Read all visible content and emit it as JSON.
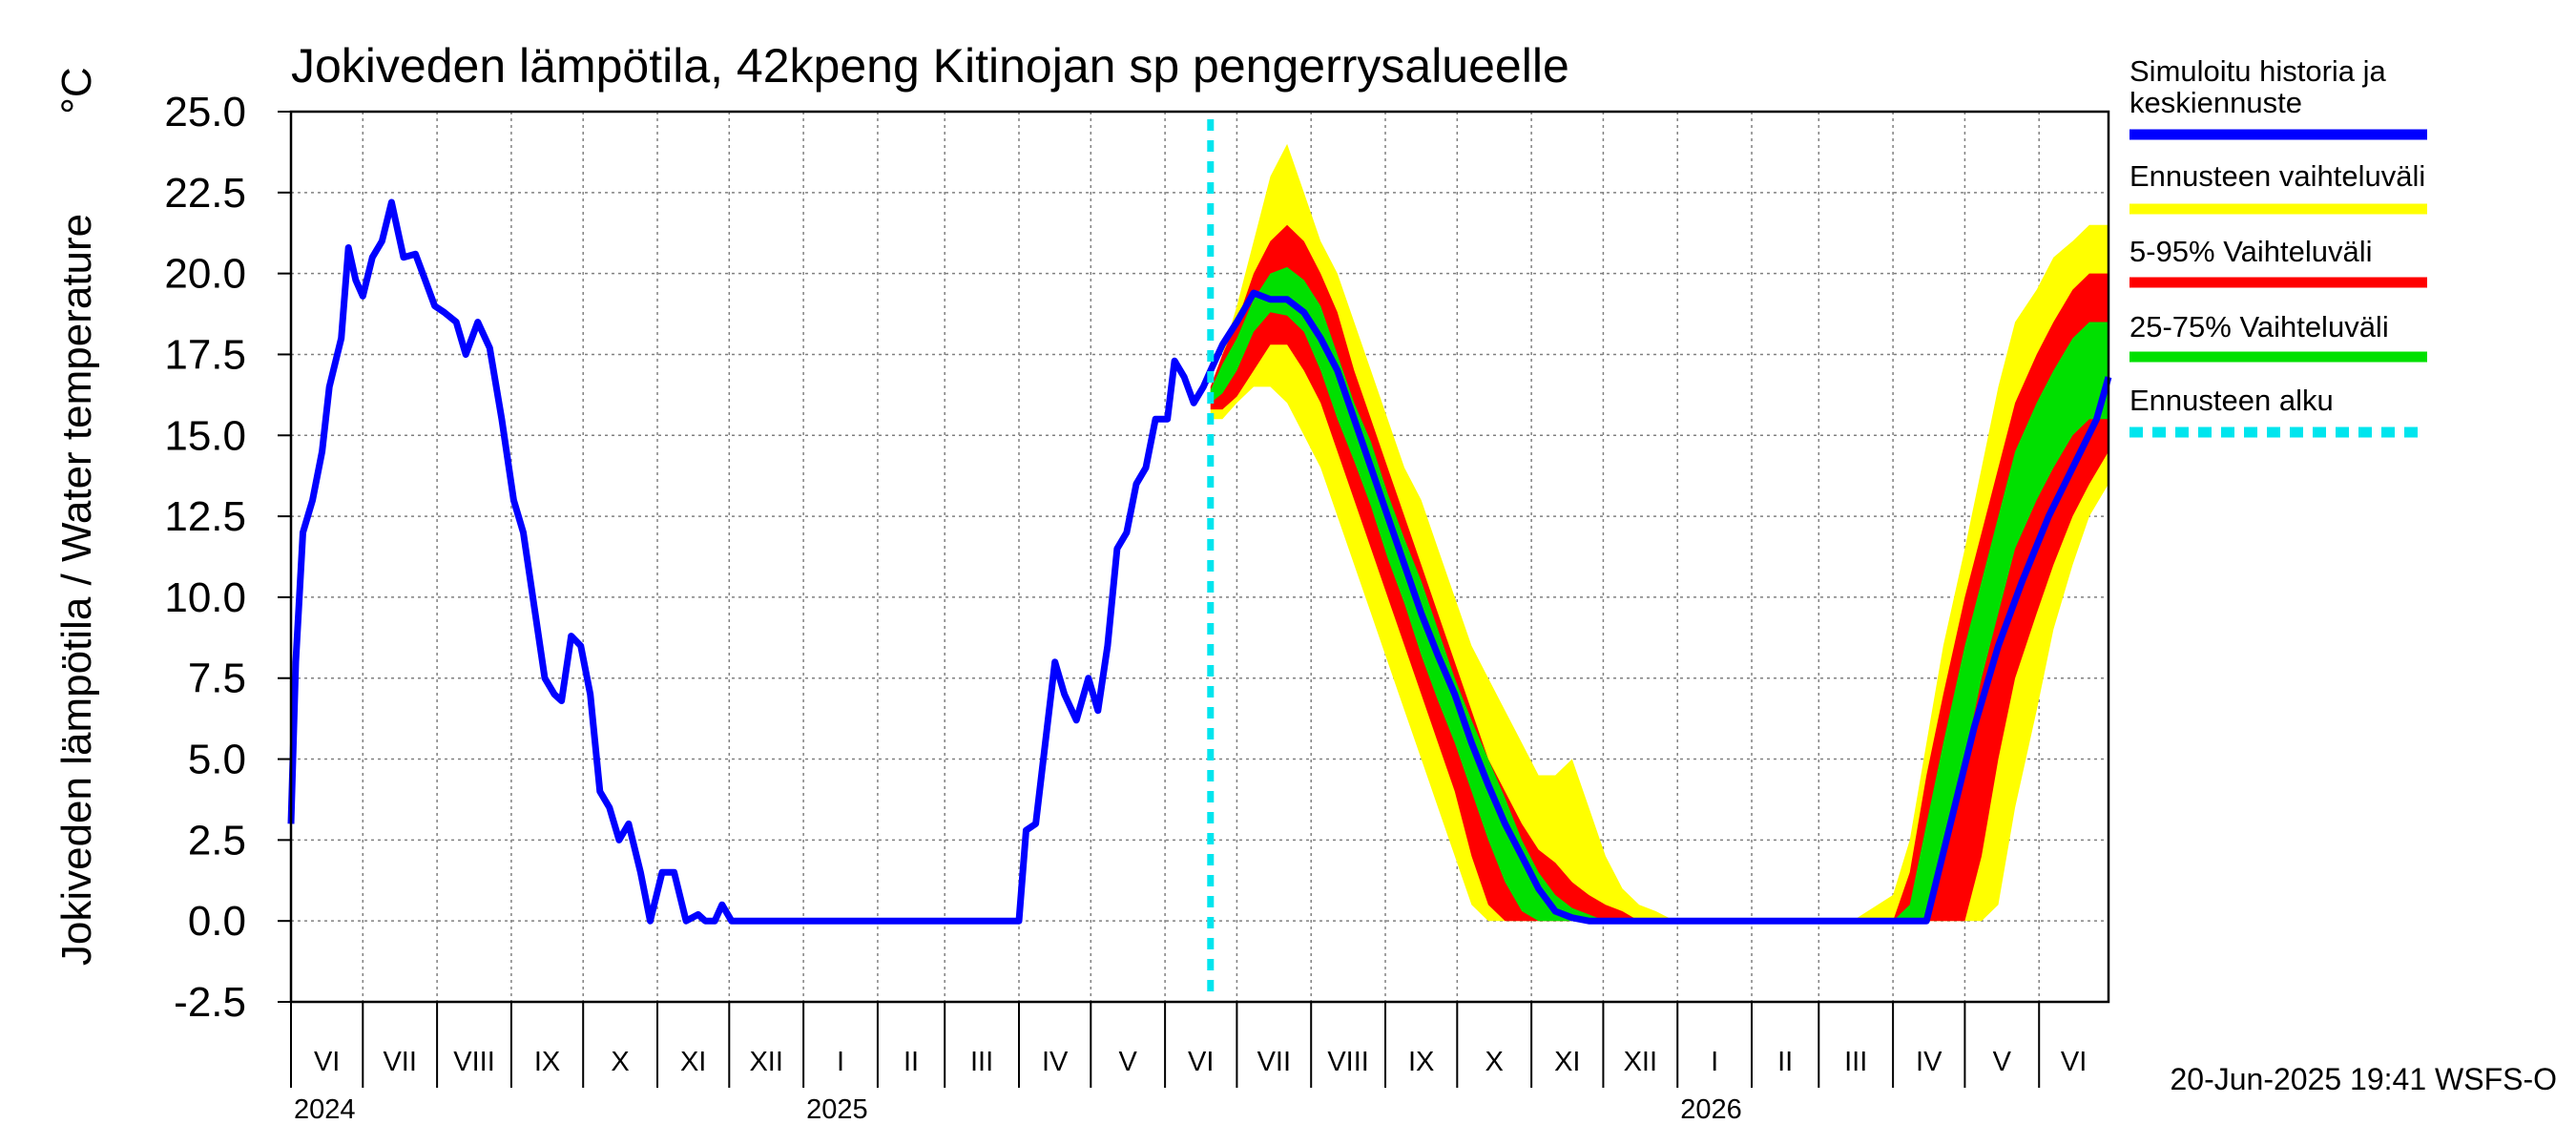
{
  "chart_data": {
    "type": "area",
    "title": "Jokiveden lämpötila, 42kpeng Kitinojan sp pengerrysalueelle",
    "ylabel": "Jokiveden lämpötila / Water temperature",
    "yunit": "°C",
    "ylim": [
      -2.5,
      25.0
    ],
    "yticks": [
      "25.0",
      "22.5",
      "20.0",
      "17.5",
      "15.0",
      "12.5",
      "10.0",
      "7.5",
      "5.0",
      "2.5",
      "0.0",
      "-2.5"
    ],
    "xlim": [
      "2024-06-01",
      "2026-06-30"
    ],
    "months": [
      {
        "label": "VI",
        "start": "2024-06-01"
      },
      {
        "label": "VII",
        "start": "2024-07-01"
      },
      {
        "label": "VIII",
        "start": "2024-08-01"
      },
      {
        "label": "IX",
        "start": "2024-09-01"
      },
      {
        "label": "X",
        "start": "2024-10-01"
      },
      {
        "label": "XI",
        "start": "2024-11-01"
      },
      {
        "label": "XII",
        "start": "2024-12-01"
      },
      {
        "label": "I",
        "start": "2025-01-01"
      },
      {
        "label": "II",
        "start": "2025-02-01"
      },
      {
        "label": "III",
        "start": "2025-03-01"
      },
      {
        "label": "IV",
        "start": "2025-04-01"
      },
      {
        "label": "V",
        "start": "2025-05-01"
      },
      {
        "label": "VI",
        "start": "2025-06-01"
      },
      {
        "label": "VII",
        "start": "2025-07-01"
      },
      {
        "label": "VIII",
        "start": "2025-08-01"
      },
      {
        "label": "IX",
        "start": "2025-09-01"
      },
      {
        "label": "X",
        "start": "2025-10-01"
      },
      {
        "label": "XI",
        "start": "2025-11-01"
      },
      {
        "label": "XII",
        "start": "2025-12-01"
      },
      {
        "label": "I",
        "start": "2026-01-01"
      },
      {
        "label": "II",
        "start": "2026-02-01"
      },
      {
        "label": "III",
        "start": "2026-03-01"
      },
      {
        "label": "IV",
        "start": "2026-04-01"
      },
      {
        "label": "V",
        "start": "2026-05-01"
      },
      {
        "label": "VI",
        "start": "2026-06-01"
      }
    ],
    "years": [
      {
        "label": "2024",
        "date": "2024-06-01"
      },
      {
        "label": "2025",
        "date": "2025-01-01"
      },
      {
        "label": "2026",
        "date": "2026-01-01"
      }
    ],
    "forecast_start": "2025-06-20",
    "grid": true,
    "legend_position": "right",
    "colors": {
      "history": "#0000ff",
      "range_full": "#ffff00",
      "range_5_95": "#ff0000",
      "range_25_75": "#00e000",
      "forecast_start": "#00e5ee"
    },
    "series": [
      {
        "name": "Simuloitu historia ja keskiennuste",
        "x": [
          "2024-06-01",
          "2024-06-03",
          "2024-06-06",
          "2024-06-10",
          "2024-06-14",
          "2024-06-17",
          "2024-06-22",
          "2024-06-25",
          "2024-06-28",
          "2024-07-01",
          "2024-07-05",
          "2024-07-09",
          "2024-07-13",
          "2024-07-18",
          "2024-07-23",
          "2024-07-27",
          "2024-07-31",
          "2024-08-04",
          "2024-08-09",
          "2024-08-13",
          "2024-08-18",
          "2024-08-23",
          "2024-08-28",
          "2024-09-02",
          "2024-09-06",
          "2024-09-11",
          "2024-09-15",
          "2024-09-19",
          "2024-09-22",
          "2024-09-26",
          "2024-09-30",
          "2024-10-04",
          "2024-10-08",
          "2024-10-12",
          "2024-10-16",
          "2024-10-20",
          "2024-10-25",
          "2024-10-29",
          "2024-11-03",
          "2024-11-08",
          "2024-11-13",
          "2024-11-18",
          "2024-11-21",
          "2024-11-25",
          "2024-11-28",
          "2024-12-02",
          "2024-12-06",
          "2024-12-10",
          "2024-12-15",
          "2024-12-19",
          "2024-12-25",
          "2025-01-01",
          "2025-02-01",
          "2025-03-01",
          "2025-04-01",
          "2025-04-04",
          "2025-04-08",
          "2025-04-12",
          "2025-04-16",
          "2025-04-20",
          "2025-04-25",
          "2025-04-30",
          "2025-05-04",
          "2025-05-08",
          "2025-05-12",
          "2025-05-16",
          "2025-05-20",
          "2025-05-24",
          "2025-05-28",
          "2025-06-02",
          "2025-06-05",
          "2025-06-09",
          "2025-06-13",
          "2025-06-17",
          "2025-06-20",
          "2025-06-25",
          "2025-07-01",
          "2025-07-08",
          "2025-07-15",
          "2025-07-22",
          "2025-07-29",
          "2025-08-05",
          "2025-08-12",
          "2025-08-19",
          "2025-08-26",
          "2025-09-02",
          "2025-09-09",
          "2025-09-16",
          "2025-09-23",
          "2025-09-30",
          "2025-10-07",
          "2025-10-14",
          "2025-10-21",
          "2025-10-28",
          "2025-11-04",
          "2025-11-11",
          "2025-11-18",
          "2025-11-25",
          "2025-12-02",
          "2025-12-15",
          "2026-01-01",
          "2026-02-01",
          "2026-03-01",
          "2026-04-01",
          "2026-04-15",
          "2026-04-25",
          "2026-05-05",
          "2026-05-15",
          "2026-05-25",
          "2026-06-05",
          "2026-06-15",
          "2026-06-25",
          "2026-06-30"
        ],
        "y": [
          3.0,
          8.0,
          12.0,
          13.0,
          14.5,
          16.5,
          18.0,
          20.8,
          19.8,
          19.3,
          20.5,
          21.0,
          22.2,
          20.5,
          20.6,
          19.8,
          19.0,
          18.8,
          18.5,
          17.5,
          18.5,
          17.7,
          15.5,
          13.0,
          12.0,
          9.5,
          7.5,
          7.0,
          6.8,
          8.8,
          8.5,
          7.0,
          4.0,
          3.5,
          2.5,
          3.0,
          1.5,
          0.0,
          1.5,
          1.5,
          0.0,
          0.2,
          0.0,
          0.0,
          0.5,
          0.0,
          0.0,
          0.0,
          0.0,
          0.0,
          0.0,
          0.0,
          0.0,
          0.0,
          0.0,
          2.8,
          3.0,
          5.5,
          8.0,
          7.0,
          6.2,
          7.5,
          6.5,
          8.5,
          11.5,
          12.0,
          13.5,
          14.0,
          15.5,
          15.5,
          17.3,
          16.8,
          16.0,
          16.5,
          17.0,
          17.8,
          18.5,
          19.4,
          19.2,
          19.2,
          18.8,
          18.0,
          17.0,
          15.5,
          14.0,
          12.5,
          11.0,
          9.5,
          8.2,
          7.0,
          5.5,
          4.2,
          3.0,
          2.0,
          1.0,
          0.3,
          0.1,
          0.0,
          0.0,
          0.0,
          0.0,
          0.0,
          0.0,
          0.0,
          0.0,
          3.0,
          6.0,
          8.5,
          10.5,
          12.5,
          14.0,
          15.5,
          16.8
        ]
      },
      {
        "name": "Ennusteen vaihteluväli",
        "x": [
          "2025-06-20",
          "2025-06-25",
          "2025-07-01",
          "2025-07-08",
          "2025-07-15",
          "2025-07-22",
          "2025-07-29",
          "2025-08-05",
          "2025-08-12",
          "2025-08-19",
          "2025-08-26",
          "2025-09-02",
          "2025-09-09",
          "2025-09-16",
          "2025-09-23",
          "2025-09-30",
          "2025-10-07",
          "2025-10-14",
          "2025-10-21",
          "2025-10-28",
          "2025-11-04",
          "2025-11-11",
          "2025-11-18",
          "2025-11-25",
          "2025-12-02",
          "2025-12-09",
          "2025-12-16",
          "2025-12-23",
          "2025-12-31",
          "2026-03-15",
          "2026-04-01",
          "2026-04-08",
          "2026-04-15",
          "2026-04-22",
          "2026-05-01",
          "2026-05-08",
          "2026-05-15",
          "2026-05-22",
          "2026-05-31",
          "2026-06-07",
          "2026-06-15",
          "2026-06-22",
          "2026-06-30"
        ],
        "upper": [
          16.5,
          17.5,
          19.0,
          21.0,
          23.0,
          24.0,
          22.5,
          21.0,
          20.0,
          18.5,
          17.0,
          15.5,
          14.0,
          13.0,
          11.5,
          10.0,
          8.5,
          7.5,
          6.5,
          5.5,
          4.5,
          4.5,
          5.0,
          3.5,
          2.0,
          1.0,
          0.5,
          0.3,
          0.0,
          0.0,
          0.8,
          2.5,
          5.5,
          8.5,
          11.5,
          14.0,
          16.5,
          18.5,
          19.5,
          20.5,
          21.0,
          21.5,
          21.5
        ],
        "lower": [
          15.5,
          15.5,
          16.0,
          16.5,
          16.5,
          16.0,
          15.0,
          14.0,
          12.5,
          11.0,
          9.5,
          8.0,
          6.5,
          5.0,
          3.5,
          2.0,
          0.5,
          0.0,
          0.0,
          0.0,
          0.0,
          0.0,
          0.0,
          0.0,
          0.0,
          0.0,
          0.0,
          0.0,
          0.0,
          0.0,
          0.0,
          0.0,
          0.0,
          0.0,
          0.0,
          0.0,
          0.5,
          3.5,
          6.5,
          9.0,
          11.0,
          12.5,
          13.5
        ]
      },
      {
        "name": "5-95% Vaihteluväli",
        "x": [
          "2025-06-20",
          "2025-06-25",
          "2025-07-01",
          "2025-07-08",
          "2025-07-15",
          "2025-07-22",
          "2025-07-29",
          "2025-08-05",
          "2025-08-12",
          "2025-08-19",
          "2025-08-26",
          "2025-09-02",
          "2025-09-09",
          "2025-09-16",
          "2025-09-23",
          "2025-09-30",
          "2025-10-07",
          "2025-10-14",
          "2025-10-21",
          "2025-10-28",
          "2025-11-04",
          "2025-11-11",
          "2025-11-18",
          "2025-11-25",
          "2025-12-02",
          "2025-12-09",
          "2025-12-16",
          "2025-12-31",
          "2026-03-15",
          "2026-04-01",
          "2026-04-08",
          "2026-04-15",
          "2026-04-22",
          "2026-05-01",
          "2026-05-08",
          "2026-05-15",
          "2026-05-22",
          "2026-05-31",
          "2026-06-07",
          "2026-06-15",
          "2026-06-22",
          "2026-06-30"
        ],
        "upper": [
          16.5,
          17.5,
          18.5,
          20.0,
          21.0,
          21.5,
          21.0,
          20.0,
          18.8,
          17.0,
          15.5,
          14.0,
          12.5,
          11.0,
          9.5,
          8.0,
          6.5,
          5.0,
          4.0,
          3.0,
          2.2,
          1.8,
          1.2,
          0.8,
          0.5,
          0.3,
          0.0,
          0.0,
          0.0,
          0.0,
          1.5,
          4.5,
          7.0,
          10.0,
          12.0,
          14.0,
          16.0,
          17.5,
          18.5,
          19.5,
          20.0,
          20.0
        ],
        "lower": [
          15.8,
          15.8,
          16.2,
          17.0,
          17.8,
          17.8,
          17.0,
          16.0,
          14.5,
          13.0,
          11.5,
          10.0,
          8.5,
          7.0,
          5.5,
          4.0,
          2.0,
          0.5,
          0.0,
          0.0,
          0.0,
          0.0,
          0.0,
          0.0,
          0.0,
          0.0,
          0.0,
          0.0,
          0.0,
          0.0,
          0.0,
          0.0,
          0.0,
          0.0,
          2.0,
          5.0,
          7.5,
          9.5,
          11.0,
          12.5,
          13.5,
          14.5
        ]
      },
      {
        "name": "25-75% Vaihteluväli",
        "x": [
          "2025-06-20",
          "2025-06-25",
          "2025-07-01",
          "2025-07-08",
          "2025-07-15",
          "2025-07-22",
          "2025-07-29",
          "2025-08-05",
          "2025-08-12",
          "2025-08-19",
          "2025-08-26",
          "2025-09-02",
          "2025-09-09",
          "2025-09-16",
          "2025-09-23",
          "2025-09-30",
          "2025-10-07",
          "2025-10-14",
          "2025-10-21",
          "2025-10-28",
          "2025-11-04",
          "2025-11-11",
          "2025-11-18",
          "2025-11-25",
          "2025-12-02",
          "2025-12-15",
          "2026-03-15",
          "2026-04-01",
          "2026-04-08",
          "2026-04-15",
          "2026-04-22",
          "2026-05-01",
          "2026-05-08",
          "2026-05-15",
          "2026-05-22",
          "2026-05-31",
          "2026-06-07",
          "2026-06-15",
          "2026-06-22",
          "2026-06-30"
        ],
        "upper": [
          16.4,
          17.2,
          18.0,
          19.2,
          20.0,
          20.2,
          19.8,
          19.0,
          17.5,
          16.0,
          14.8,
          13.2,
          11.8,
          10.5,
          9.0,
          7.5,
          6.2,
          5.0,
          3.8,
          2.5,
          1.5,
          0.8,
          0.4,
          0.2,
          0.0,
          0.0,
          0.0,
          0.0,
          0.5,
          3.0,
          5.5,
          8.5,
          10.5,
          12.5,
          14.5,
          16.0,
          17.0,
          18.0,
          18.5,
          18.5
        ],
        "lower": [
          16.0,
          16.3,
          17.0,
          18.2,
          18.8,
          18.7,
          18.2,
          17.0,
          15.5,
          14.2,
          12.8,
          11.2,
          9.8,
          8.2,
          6.8,
          5.5,
          4.0,
          2.5,
          1.2,
          0.3,
          0.0,
          0.0,
          0.0,
          0.0,
          0.0,
          0.0,
          0.0,
          0.0,
          0.0,
          0.0,
          2.0,
          5.0,
          7.5,
          9.5,
          11.5,
          13.0,
          14.0,
          15.0,
          15.5,
          15.5
        ]
      },
      {
        "name": "Ennusteen alku",
        "x": [
          "2025-06-20"
        ]
      }
    ]
  },
  "legend": [
    {
      "line1": "Simuloitu historia ja",
      "line2": "keskiennuste",
      "swatch": "#0000ff",
      "style": "solid"
    },
    {
      "line1": "Ennusteen vaihteluväli",
      "line2": "",
      "swatch": "#ffff00",
      "style": "solid"
    },
    {
      "line1": "5-95% Vaihteluväli",
      "line2": "",
      "swatch": "#ff0000",
      "style": "solid"
    },
    {
      "line1": "25-75% Vaihteluväli",
      "line2": "",
      "swatch": "#00e000",
      "style": "solid"
    },
    {
      "line1": "Ennusteen alku",
      "line2": "",
      "swatch": "#00e5ee",
      "style": "dashed"
    }
  ],
  "footer": "20-Jun-2025 19:41 WSFS-O"
}
